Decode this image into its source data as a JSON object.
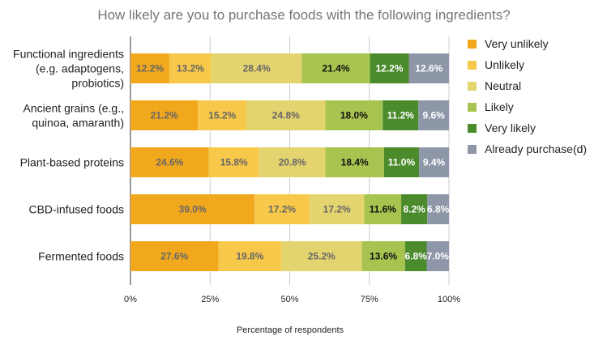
{
  "chart_data": {
    "type": "bar",
    "orientation": "horizontal",
    "stacked": true,
    "title": "How likely are you to purchase foods with the following ingredients?",
    "xlabel": "Percentage of respondents",
    "ylabel": "",
    "xlim": [
      0,
      100
    ],
    "x_ticks": [
      "0%",
      "25%",
      "50%",
      "75%",
      "100%"
    ],
    "grid": "vertical",
    "legend_position": "right",
    "categories": [
      [
        "Functional ingredients",
        "(e.g. adaptogens,",
        "probiotics)"
      ],
      [
        "Ancient grains (e.g.,",
        "quinoa, amaranth)"
      ],
      [
        "Plant-based proteins"
      ],
      [
        "CBD-infused foods"
      ],
      [
        "Fermented foods"
      ]
    ],
    "series": [
      {
        "name": "Very unlikely",
        "color": "#F2A81D",
        "label_color": "#666666",
        "values": [
          12.2,
          21.2,
          24.6,
          39.0,
          27.6
        ]
      },
      {
        "name": "Unlikely",
        "color": "#F8C84A",
        "label_color": "#666666",
        "values": [
          13.2,
          15.2,
          15.8,
          17.2,
          19.8
        ]
      },
      {
        "name": "Neutral",
        "color": "#E4D470",
        "label_color": "#666666",
        "values": [
          28.4,
          24.8,
          20.8,
          17.2,
          25.2
        ]
      },
      {
        "name": "Likely",
        "color": "#A8C450",
        "label_color": "#111111",
        "values": [
          21.4,
          18.0,
          18.4,
          11.6,
          13.6
        ]
      },
      {
        "name": "Very likely",
        "color": "#4B8B2C",
        "label_color": "#FFFFFF",
        "values": [
          12.2,
          11.2,
          11.0,
          8.2,
          6.8
        ]
      },
      {
        "name": "Already purchase(d)",
        "color": "#8E97A8",
        "label_color": "#FFFFFF",
        "values": [
          12.6,
          9.6,
          9.4,
          6.8,
          7.0
        ]
      }
    ]
  }
}
